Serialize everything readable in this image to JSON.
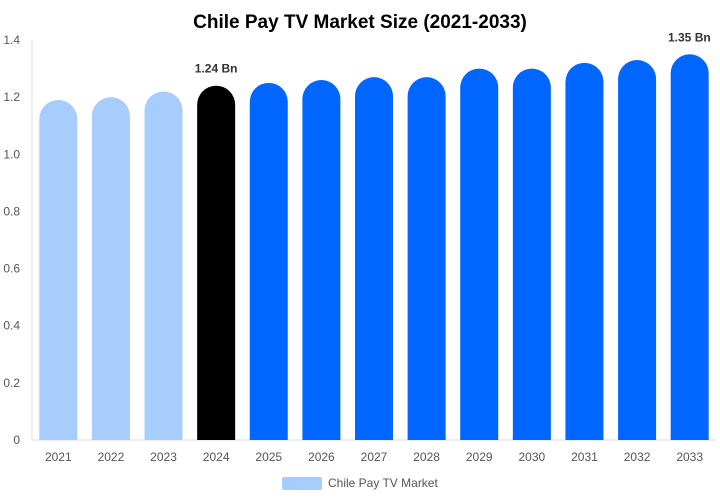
{
  "chart_data": {
    "type": "bar",
    "title": "Chile Pay TV Market Size (2021-2033)",
    "xlabel": "",
    "ylabel": "",
    "categories": [
      "2021",
      "2022",
      "2023",
      "2024",
      "2025",
      "2026",
      "2027",
      "2028",
      "2029",
      "2030",
      "2031",
      "2032",
      "2033"
    ],
    "series": [
      {
        "name": "Chile Pay TV Market",
        "values": [
          1.19,
          1.2,
          1.22,
          1.24,
          1.25,
          1.26,
          1.27,
          1.27,
          1.3,
          1.3,
          1.32,
          1.33,
          1.35
        ]
      }
    ],
    "bar_colors": [
      "#a6cdfb",
      "#a6cdfb",
      "#a6cdfb",
      "#000000",
      "#0066ff",
      "#0066ff",
      "#0066ff",
      "#0066ff",
      "#0066ff",
      "#0066ff",
      "#0066ff",
      "#0066ff",
      "#0066ff"
    ],
    "data_labels": [
      {
        "category": "2024",
        "text": "1.24 Bn"
      },
      {
        "category": "2033",
        "text": "1.35 Bn"
      }
    ],
    "ylim": [
      0,
      1.4
    ],
    "yticks": [
      "0",
      "0.2",
      "0.4",
      "0.6",
      "0.8",
      "1.0",
      "1.2",
      "1.4"
    ],
    "grid": false,
    "legend": {
      "position": "bottom",
      "color": "#a6cdfb"
    }
  }
}
